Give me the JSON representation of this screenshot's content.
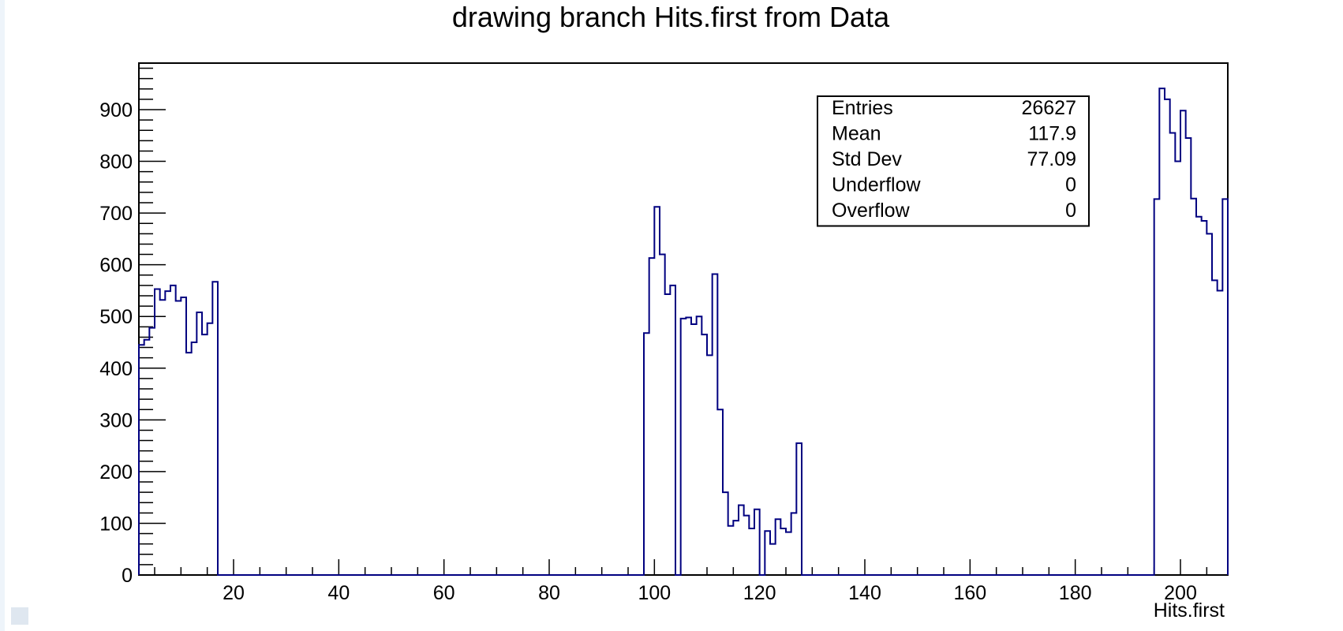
{
  "chart_data": {
    "type": "bar",
    "title": "drawing branch Hits.first from Data",
    "xlabel": "Hits.first",
    "ylabel": "",
    "xlim": [
      2,
      209
    ],
    "ylim": [
      0,
      990
    ],
    "bin_width": 1,
    "x_ticks": [
      20,
      40,
      60,
      80,
      100,
      120,
      140,
      160,
      180,
      200
    ],
    "y_ticks": [
      0,
      100,
      200,
      300,
      400,
      500,
      600,
      700,
      800,
      900
    ],
    "line_color": "#000080",
    "grid": false,
    "bins": [
      {
        "x": 2,
        "value": 445
      },
      {
        "x": 3,
        "value": 455
      },
      {
        "x": 4,
        "value": 478
      },
      {
        "x": 5,
        "value": 553
      },
      {
        "x": 6,
        "value": 532
      },
      {
        "x": 7,
        "value": 549
      },
      {
        "x": 8,
        "value": 560
      },
      {
        "x": 9,
        "value": 530
      },
      {
        "x": 10,
        "value": 537
      },
      {
        "x": 11,
        "value": 430
      },
      {
        "x": 12,
        "value": 450
      },
      {
        "x": 13,
        "value": 508
      },
      {
        "x": 14,
        "value": 465
      },
      {
        "x": 15,
        "value": 487
      },
      {
        "x": 16,
        "value": 567
      },
      {
        "x": 98,
        "value": 468
      },
      {
        "x": 99,
        "value": 613
      },
      {
        "x": 100,
        "value": 712
      },
      {
        "x": 101,
        "value": 620
      },
      {
        "x": 102,
        "value": 543
      },
      {
        "x": 103,
        "value": 560
      },
      {
        "x": 105,
        "value": 496
      },
      {
        "x": 106,
        "value": 498
      },
      {
        "x": 107,
        "value": 485
      },
      {
        "x": 108,
        "value": 500
      },
      {
        "x": 109,
        "value": 465
      },
      {
        "x": 110,
        "value": 425
      },
      {
        "x": 111,
        "value": 582
      },
      {
        "x": 112,
        "value": 320
      },
      {
        "x": 113,
        "value": 160
      },
      {
        "x": 114,
        "value": 95
      },
      {
        "x": 115,
        "value": 105
      },
      {
        "x": 116,
        "value": 135
      },
      {
        "x": 117,
        "value": 115
      },
      {
        "x": 118,
        "value": 90
      },
      {
        "x": 119,
        "value": 127
      },
      {
        "x": 121,
        "value": 85
      },
      {
        "x": 122,
        "value": 60
      },
      {
        "x": 123,
        "value": 108
      },
      {
        "x": 124,
        "value": 90
      },
      {
        "x": 125,
        "value": 83
      },
      {
        "x": 126,
        "value": 120
      },
      {
        "x": 127,
        "value": 255
      },
      {
        "x": 195,
        "value": 727
      },
      {
        "x": 196,
        "value": 941
      },
      {
        "x": 197,
        "value": 920
      },
      {
        "x": 198,
        "value": 855
      },
      {
        "x": 199,
        "value": 800
      },
      {
        "x": 200,
        "value": 898
      },
      {
        "x": 201,
        "value": 845
      },
      {
        "x": 202,
        "value": 728
      },
      {
        "x": 203,
        "value": 693
      },
      {
        "x": 204,
        "value": 685
      },
      {
        "x": 205,
        "value": 660
      },
      {
        "x": 206,
        "value": 570
      },
      {
        "x": 207,
        "value": 550
      },
      {
        "x": 208,
        "value": 727
      }
    ],
    "stats": [
      {
        "label": "Entries",
        "value": "26627"
      },
      {
        "label": "Mean",
        "value": "117.9"
      },
      {
        "label": "Std Dev",
        "value": "77.09"
      },
      {
        "label": "Underflow",
        "value": "0"
      },
      {
        "label": "Overflow",
        "value": "0"
      }
    ]
  }
}
